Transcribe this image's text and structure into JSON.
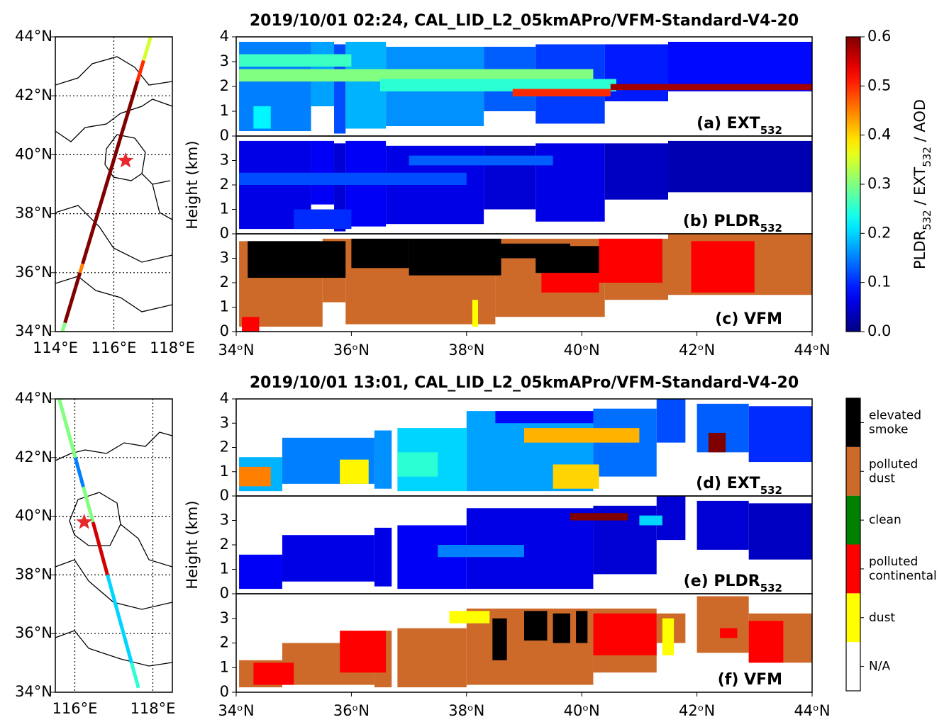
{
  "chart_data": [
    {
      "type": "map",
      "xlim": [
        114,
        118
      ],
      "ylim": [
        34,
        44
      ],
      "xticks": [
        {
          "value": 114,
          "label": "114°E"
        },
        {
          "value": 116,
          "label": "116°E"
        },
        {
          "value": 118,
          "label": "118°E"
        }
      ],
      "yticks": [
        {
          "value": 34,
          "label": "34°N"
        },
        {
          "value": 36,
          "label": "36°N"
        },
        {
          "value": 38,
          "label": "38°N"
        },
        {
          "value": 40,
          "label": "40°N"
        },
        {
          "value": 42,
          "label": "42°N"
        },
        {
          "value": 44,
          "label": "44°N"
        }
      ],
      "track": {
        "lon": [
          114.24,
          117.26
        ],
        "lat": [
          34,
          44
        ]
      },
      "segments": [
        [
          34,
          34.3,
          0.3
        ],
        [
          34.3,
          36,
          0.6
        ],
        [
          36,
          36.3,
          0.45
        ],
        [
          36.3,
          42.5,
          0.6
        ],
        [
          42.5,
          43.2,
          0.5
        ],
        [
          43.2,
          44,
          0.35
        ]
      ],
      "star": {
        "lon": 116.4,
        "lat": 39.8,
        "color": "#e8282d"
      }
    },
    {
      "type": "curtain",
      "title": "2019/10/01 02:24, CAL_LID_L2_05kmAPro/VFM-Standard-V4-20",
      "panel_label": {
        "text": "(a) EXT",
        "sub": "532"
      },
      "xlim": [
        34,
        44
      ],
      "ylim": [
        0,
        4
      ],
      "yticks": [
        0,
        1,
        2,
        3,
        4
      ],
      "colormap": "jet",
      "cells": [
        [
          34.05,
          35.3,
          0.2,
          3.8,
          0.15
        ],
        [
          35.3,
          35.7,
          1.2,
          3.8,
          0.17
        ],
        [
          35.7,
          35.9,
          0.1,
          3.7,
          0.12
        ],
        [
          35.9,
          36.6,
          0.3,
          3.8,
          0.18
        ],
        [
          36.6,
          38.3,
          0.4,
          3.6,
          0.16
        ],
        [
          38.3,
          39.2,
          1.0,
          3.6,
          0.13
        ],
        [
          39.2,
          40.4,
          0.5,
          3.7,
          0.11
        ],
        [
          40.4,
          41.5,
          1.4,
          3.7,
          0.09
        ],
        [
          41.5,
          44.0,
          1.8,
          3.8,
          0.08
        ],
        [
          34.05,
          40.2,
          2.2,
          2.7,
          0.3
        ],
        [
          36.5,
          40.6,
          1.8,
          2.3,
          0.25
        ],
        [
          38.8,
          40.5,
          1.6,
          1.9,
          0.5
        ],
        [
          40.5,
          44.0,
          1.85,
          2.1,
          0.58
        ],
        [
          34.05,
          36.0,
          2.8,
          3.3,
          0.26
        ],
        [
          34.3,
          34.6,
          0.3,
          1.2,
          0.22
        ]
      ]
    },
    {
      "type": "curtain",
      "ylabel": "Height (km)",
      "panel_label": {
        "text": "(b) PLDR",
        "sub": "532"
      },
      "xlim": [
        34,
        44
      ],
      "ylim": [
        0,
        4
      ],
      "yticks": [
        0,
        1,
        2,
        3
      ],
      "colormap": "jet",
      "cells": [
        [
          34.05,
          35.3,
          0.2,
          3.8,
          0.06
        ],
        [
          35.3,
          35.7,
          1.2,
          3.8,
          0.07
        ],
        [
          35.7,
          35.9,
          0.1,
          3.7,
          0.05
        ],
        [
          35.9,
          36.6,
          0.3,
          3.8,
          0.07
        ],
        [
          36.6,
          38.3,
          0.4,
          3.6,
          0.06
        ],
        [
          38.3,
          39.2,
          1.0,
          3.6,
          0.05
        ],
        [
          39.2,
          40.4,
          0.5,
          3.7,
          0.06
        ],
        [
          40.4,
          41.5,
          1.4,
          3.7,
          0.04
        ],
        [
          41.5,
          44.0,
          1.7,
          3.8,
          0.03
        ],
        [
          34.05,
          38.0,
          2.0,
          2.5,
          0.12
        ],
        [
          35.0,
          36.0,
          0.2,
          1.0,
          0.1
        ],
        [
          37.0,
          39.5,
          2.8,
          3.2,
          0.13
        ]
      ]
    },
    {
      "type": "curtain",
      "panel_label": {
        "text": "(c) VFM"
      },
      "xlim": [
        34,
        44
      ],
      "ylim": [
        0,
        4
      ],
      "yticks": [
        0,
        1,
        2,
        3
      ],
      "colormap": "vfm",
      "xticks": [
        {
          "value": 34,
          "label": "34ᵒN"
        },
        {
          "value": 36,
          "label": "36ᵒN"
        },
        {
          "value": 38,
          "label": "38ᵒN"
        },
        {
          "value": 40,
          "label": "40ᵒN"
        },
        {
          "value": 42,
          "label": "42ᵒN"
        },
        {
          "value": 44,
          "label": "44ᵒN"
        }
      ],
      "cells": [
        [
          34.05,
          35.5,
          0.2,
          3.7,
          4
        ],
        [
          35.5,
          35.9,
          1.2,
          3.8,
          4
        ],
        [
          35.9,
          38.5,
          0.3,
          3.8,
          4
        ],
        [
          38.5,
          40.4,
          0.6,
          3.8,
          4
        ],
        [
          40.4,
          41.5,
          1.3,
          3.8,
          4
        ],
        [
          41.5,
          44.0,
          1.5,
          4.0,
          4
        ],
        [
          34.1,
          34.4,
          0.0,
          0.6,
          2
        ],
        [
          34.2,
          35.9,
          2.2,
          3.7,
          5
        ],
        [
          36.0,
          37.0,
          2.6,
          3.8,
          5
        ],
        [
          37.0,
          38.6,
          2.3,
          3.8,
          5
        ],
        [
          39.2,
          40.3,
          2.4,
          3.5,
          5
        ],
        [
          38.6,
          39.8,
          3.0,
          3.6,
          5
        ],
        [
          40.3,
          41.4,
          2.0,
          3.8,
          2
        ],
        [
          41.9,
          43.0,
          1.6,
          3.7,
          2
        ],
        [
          39.3,
          40.3,
          1.6,
          2.4,
          2
        ],
        [
          38.1,
          38.2,
          0.2,
          1.3,
          1
        ]
      ]
    },
    {
      "type": "map",
      "xlim": [
        115.5,
        118.5
      ],
      "ylim": [
        34,
        44
      ],
      "xticks": [
        {
          "value": 116,
          "label": "116°E"
        },
        {
          "value": 118,
          "label": "118°E"
        }
      ],
      "yticks": [
        {
          "value": 34,
          "label": "34°N"
        },
        {
          "value": 36,
          "label": "36°N"
        },
        {
          "value": 38,
          "label": "38°N"
        },
        {
          "value": 40,
          "label": "40°N"
        },
        {
          "value": 42,
          "label": "42°N"
        },
        {
          "value": 44,
          "label": "44°N"
        }
      ],
      "track": {
        "lon": [
          117.63,
          115.6
        ],
        "lat": [
          34.15,
          44
        ]
      },
      "segments": [
        [
          34.15,
          35,
          0.25
        ],
        [
          35,
          38,
          0.2
        ],
        [
          38,
          39.8,
          0.55
        ],
        [
          39.8,
          41,
          0.3
        ],
        [
          41,
          42,
          0.15
        ],
        [
          42,
          44,
          0.3
        ]
      ],
      "star": {
        "lon": 116.24,
        "lat": 39.8,
        "color": "#e8282d"
      }
    },
    {
      "type": "curtain",
      "title": "2019/10/01 13:01, CAL_LID_L2_05kmAPro/VFM-Standard-V4-20",
      "panel_label": {
        "text": "(d) EXT",
        "sub": "532"
      },
      "xlim": [
        34,
        44
      ],
      "ylim": [
        0,
        4
      ],
      "yticks": [
        0,
        1,
        2,
        3,
        4
      ],
      "colormap": "jet",
      "cells": [
        [
          34.05,
          34.8,
          0.2,
          1.6,
          0.18
        ],
        [
          34.8,
          36.4,
          0.5,
          2.4,
          0.15
        ],
        [
          36.4,
          36.7,
          0.3,
          2.7,
          0.16
        ],
        [
          36.8,
          38.0,
          0.2,
          2.8,
          0.2
        ],
        [
          38.0,
          40.2,
          0.2,
          3.5,
          0.17
        ],
        [
          40.2,
          41.3,
          0.8,
          3.6,
          0.14
        ],
        [
          41.3,
          41.8,
          2.2,
          4.0,
          0.12
        ],
        [
          42.0,
          42.9,
          1.8,
          3.8,
          0.13
        ],
        [
          42.9,
          44.0,
          1.4,
          3.7,
          0.1
        ],
        [
          34.05,
          34.6,
          0.4,
          1.2,
          0.45
        ],
        [
          35.8,
          36.3,
          0.5,
          1.5,
          0.38
        ],
        [
          39.5,
          40.3,
          0.3,
          1.3,
          0.4
        ],
        [
          39.0,
          41.0,
          2.2,
          2.8,
          0.42
        ],
        [
          38.5,
          40.2,
          3.0,
          3.5,
          0.08
        ],
        [
          42.2,
          42.5,
          1.8,
          2.6,
          0.6
        ],
        [
          36.8,
          37.5,
          0.8,
          1.8,
          0.25
        ]
      ]
    },
    {
      "type": "curtain",
      "ylabel": "Height (km)",
      "panel_label": {
        "text": "(e) PLDR",
        "sub": "532"
      },
      "xlim": [
        34,
        44
      ],
      "ylim": [
        0,
        4
      ],
      "yticks": [
        0,
        1,
        2,
        3
      ],
      "colormap": "jet",
      "cells": [
        [
          34.05,
          34.8,
          0.2,
          1.6,
          0.07
        ],
        [
          34.8,
          36.4,
          0.5,
          2.4,
          0.06
        ],
        [
          36.4,
          36.7,
          0.3,
          2.7,
          0.06
        ],
        [
          36.8,
          38.0,
          0.2,
          2.8,
          0.07
        ],
        [
          38.0,
          40.2,
          0.2,
          3.5,
          0.06
        ],
        [
          40.2,
          41.3,
          0.8,
          3.6,
          0.05
        ],
        [
          41.3,
          41.8,
          2.2,
          4.0,
          0.05
        ],
        [
          42.0,
          42.9,
          1.8,
          3.8,
          0.05
        ],
        [
          42.9,
          44.0,
          1.4,
          3.7,
          0.04
        ],
        [
          39.8,
          40.8,
          3.0,
          3.3,
          0.6
        ],
        [
          37.5,
          39.0,
          1.5,
          2.0,
          0.15
        ],
        [
          41.0,
          41.4,
          2.8,
          3.2,
          0.2
        ]
      ]
    },
    {
      "type": "curtain",
      "panel_label": {
        "text": "(f) VFM"
      },
      "xlim": [
        34,
        44
      ],
      "ylim": [
        0,
        4
      ],
      "yticks": [
        0,
        1,
        2,
        3
      ],
      "colormap": "vfm",
      "xticks": [
        {
          "value": 34,
          "label": "34ᵒN"
        },
        {
          "value": 36,
          "label": "36ᵒN"
        },
        {
          "value": 38,
          "label": "38ᵒN"
        },
        {
          "value": 40,
          "label": "40ᵒN"
        },
        {
          "value": 42,
          "label": "42ᵒN"
        },
        {
          "value": 44,
          "label": "44ᵒN"
        }
      ],
      "cells": [
        [
          34.05,
          34.8,
          0.2,
          1.3,
          4
        ],
        [
          34.8,
          36.4,
          0.3,
          2.0,
          4
        ],
        [
          36.4,
          36.7,
          0.2,
          2.5,
          4
        ],
        [
          36.8,
          38.0,
          0.2,
          2.6,
          4
        ],
        [
          38.0,
          40.2,
          0.3,
          3.4,
          4
        ],
        [
          40.2,
          41.3,
          0.8,
          3.4,
          4
        ],
        [
          41.3,
          41.8,
          2.0,
          3.2,
          4
        ],
        [
          42.0,
          42.9,
          1.6,
          3.9,
          4
        ],
        [
          42.9,
          44.0,
          1.2,
          3.2,
          4
        ],
        [
          34.3,
          35.0,
          0.3,
          1.2,
          2
        ],
        [
          35.8,
          36.6,
          0.8,
          2.5,
          2
        ],
        [
          37.7,
          38.4,
          2.8,
          3.3,
          1
        ],
        [
          38.45,
          38.7,
          1.3,
          3.0,
          5
        ],
        [
          39.0,
          39.4,
          2.1,
          3.3,
          5
        ],
        [
          39.5,
          39.8,
          2.0,
          3.2,
          5
        ],
        [
          39.9,
          40.1,
          2.0,
          3.3,
          5
        ],
        [
          40.2,
          41.3,
          1.5,
          3.2,
          2
        ],
        [
          41.4,
          41.6,
          1.5,
          3.0,
          1
        ],
        [
          42.4,
          42.7,
          2.2,
          2.6,
          2
        ],
        [
          42.9,
          43.5,
          1.2,
          2.9,
          2
        ]
      ]
    },
    {
      "type": "colorbar",
      "colormap": "jet",
      "ylim": [
        0,
        0.6
      ],
      "yticks": [
        {
          "value": 0,
          "label": "0.0"
        },
        0.1,
        0.2,
        0.3,
        0.4,
        0.5,
        0.6
      ],
      "label": [
        {
          "text": "PLDR"
        },
        {
          "sub": "532"
        },
        {
          "text": " / EXT"
        },
        {
          "sub": "532"
        },
        {
          "text": " / AOD"
        }
      ]
    },
    {
      "type": "legend",
      "categories": [
        "N/A",
        "dust",
        "polluted continental",
        "clean",
        "polluted dust",
        "elevated smoke"
      ],
      "colors": [
        "#ffffff",
        "#ffff00",
        "#ff0000",
        "#008000",
        "#cd6a2a",
        "#000000"
      ]
    }
  ]
}
